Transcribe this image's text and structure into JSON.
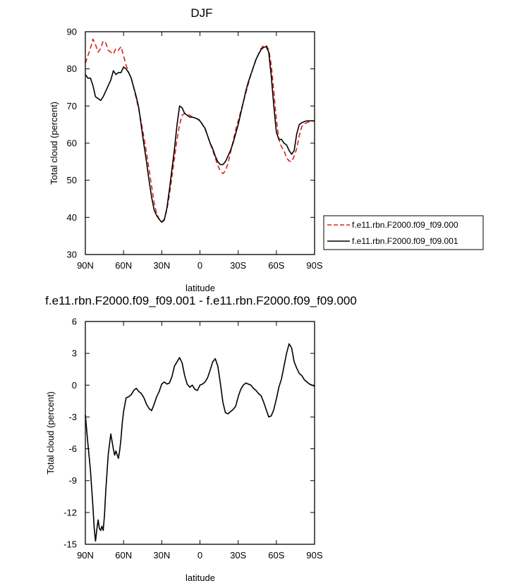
{
  "chart_data": [
    {
      "type": "line",
      "title": "DJF",
      "xlabel": "latitude",
      "ylabel": "Total cloud (percent)",
      "xlim": [
        90,
        -90
      ],
      "ylim": [
        30,
        90
      ],
      "x_ticks": [
        90,
        60,
        30,
        0,
        -30,
        -60,
        -90
      ],
      "x_tick_labels": [
        "90N",
        "60N",
        "30N",
        "0",
        "30S",
        "60S",
        "90S"
      ],
      "y_ticks": [
        30,
        40,
        50,
        60,
        70,
        80,
        90
      ],
      "y_tick_labels": [
        "30",
        "40",
        "50",
        "60",
        "70",
        "80",
        "90"
      ],
      "grid": false,
      "legend": "outside-right",
      "series": [
        {
          "name": "f.e11.rbn.F2000.f09_f09.000",
          "color": "#e0201b",
          "dash": "dashed",
          "x": [
            90,
            88,
            86,
            84,
            82,
            80,
            78,
            76,
            74,
            72,
            70,
            68,
            66,
            64,
            62,
            60,
            58,
            56,
            54,
            52,
            50,
            48,
            46,
            44,
            42,
            40,
            38,
            36,
            34,
            32,
            30,
            28,
            26,
            24,
            22,
            20,
            18,
            16,
            14,
            12,
            10,
            8,
            6,
            4,
            2,
            0,
            -2,
            -4,
            -6,
            -8,
            -10,
            -12,
            -14,
            -16,
            -18,
            -20,
            -22,
            -24,
            -26,
            -28,
            -30,
            -32,
            -34,
            -36,
            -38,
            -40,
            -42,
            -44,
            -46,
            -48,
            -50,
            -52,
            -54,
            -56,
            -58,
            -60,
            -62,
            -64,
            -66,
            -68,
            -70,
            -72,
            -74,
            -76,
            -78,
            -80,
            -82,
            -84,
            -86,
            -88,
            -90
          ],
          "y": [
            81.5,
            83.5,
            85.5,
            88,
            86.5,
            84.5,
            85.5,
            87.5,
            87,
            85,
            84.5,
            84,
            85.5,
            85,
            86,
            83.5,
            81,
            79,
            77.5,
            75,
            72,
            69,
            65.5,
            61.5,
            57.5,
            53,
            48.5,
            44,
            41,
            39.5,
            38.8,
            39.5,
            42,
            46,
            51,
            56,
            61,
            65,
            67.5,
            68,
            67.8,
            67.5,
            67,
            66.8,
            66.5,
            66.2,
            65,
            63.8,
            62,
            60,
            58,
            56,
            54,
            52.5,
            51.8,
            52.5,
            54.5,
            57.5,
            60.5,
            63.5,
            66,
            68.5,
            71,
            73.5,
            76,
            78.5,
            80.5,
            82.5,
            84,
            85.5,
            86.3,
            86.3,
            85.2,
            81,
            74,
            66.5,
            61,
            59,
            58,
            56,
            55.2,
            55,
            56.5,
            58.5,
            62,
            64.5,
            65.2,
            65.5,
            65.8,
            66,
            66
          ]
        },
        {
          "name": "f.e11.rbn.F2000.f09_f09.001",
          "color": "#000000",
          "dash": "solid",
          "x": [
            90,
            88,
            86,
            84,
            82,
            80,
            78,
            76,
            74,
            72,
            70,
            68,
            66,
            64,
            62,
            60,
            58,
            56,
            54,
            52,
            50,
            48,
            46,
            44,
            42,
            40,
            38,
            36,
            34,
            32,
            30,
            28,
            26,
            24,
            22,
            20,
            18,
            16,
            14,
            12,
            10,
            8,
            6,
            4,
            2,
            0,
            -2,
            -4,
            -6,
            -8,
            -10,
            -12,
            -14,
            -16,
            -18,
            -20,
            -22,
            -24,
            -26,
            -28,
            -30,
            -32,
            -34,
            -36,
            -38,
            -40,
            -42,
            -44,
            -46,
            -48,
            -50,
            -52,
            -54,
            -56,
            -58,
            -60,
            -62,
            -64,
            -66,
            -68,
            -70,
            -72,
            -74,
            -76,
            -78,
            -80,
            -82,
            -84,
            -86,
            -88,
            -90
          ],
          "y": [
            78.5,
            77.5,
            77.5,
            75.5,
            72.5,
            72,
            71.5,
            72.5,
            74,
            75.5,
            77,
            79.5,
            78.5,
            79,
            79,
            80.5,
            80,
            79,
            77.5,
            75,
            72.5,
            69.5,
            64.5,
            59.5,
            55,
            50,
            45.5,
            42,
            40.5,
            39.5,
            38.7,
            39.3,
            42.5,
            47.5,
            53,
            58.5,
            65,
            70,
            69.5,
            68,
            67.5,
            67,
            67,
            66.8,
            66.5,
            66,
            65,
            64,
            62,
            60,
            58.5,
            56.5,
            55,
            54.2,
            54.2,
            55,
            56.5,
            58,
            60,
            62.5,
            65,
            68,
            71,
            74,
            76.5,
            78.5,
            80.5,
            82.5,
            84,
            85.2,
            85.8,
            86,
            84.5,
            78,
            70,
            63,
            61,
            61,
            60,
            59.5,
            58,
            57,
            58,
            62.5,
            65,
            65.5,
            65.8,
            66,
            66,
            66,
            66
          ]
        }
      ]
    },
    {
      "type": "line",
      "title": "f.e11.rbn.F2000.f09_f09.001 - f.e11.rbn.F2000.f09_f09.000",
      "xlabel": "latitude",
      "ylabel": "Total cloud (percent)",
      "xlim": [
        90,
        -90
      ],
      "ylim": [
        -15,
        6
      ],
      "x_ticks": [
        90,
        60,
        30,
        0,
        -30,
        -60,
        -90
      ],
      "x_tick_labels": [
        "90N",
        "60N",
        "30N",
        "0",
        "30S",
        "60S",
        "90S"
      ],
      "y_ticks": [
        -15,
        -12,
        -9,
        -6,
        -3,
        0,
        3,
        6
      ],
      "y_tick_labels": [
        "-15",
        "-12",
        "-9",
        "-6",
        "-3",
        "0",
        "3",
        "6"
      ],
      "grid": false,
      "legend": "none",
      "series": [
        {
          "color": "#000000",
          "dash": "solid",
          "x": [
            90,
            88,
            86,
            84,
            83,
            82,
            81,
            80,
            79,
            78,
            77,
            76,
            75,
            74,
            72,
            70,
            68,
            67,
            66,
            64,
            63,
            62,
            61,
            60,
            58,
            56,
            54,
            52,
            50,
            48,
            46,
            44,
            42,
            40,
            38,
            36,
            34,
            32,
            30,
            28,
            26,
            24,
            22,
            20,
            18,
            16,
            14,
            12,
            10,
            8,
            6,
            4,
            2,
            0,
            -2,
            -4,
            -6,
            -8,
            -10,
            -12,
            -14,
            -16,
            -18,
            -20,
            -22,
            -24,
            -26,
            -28,
            -30,
            -32,
            -34,
            -36,
            -38,
            -40,
            -42,
            -44,
            -46,
            -48,
            -50,
            -52,
            -54,
            -56,
            -58,
            -60,
            -62,
            -64,
            -66,
            -68,
            -70,
            -72,
            -74,
            -76,
            -78,
            -80,
            -82,
            -84,
            -86,
            -88,
            -90
          ],
          "y": [
            -2.8,
            -5.5,
            -8,
            -11.5,
            -13.5,
            -14.7,
            -13.6,
            -12.7,
            -13.5,
            -13.7,
            -13.3,
            -13.7,
            -12.3,
            -10,
            -6.5,
            -4.6,
            -6,
            -6.6,
            -6.2,
            -6.9,
            -6.1,
            -5,
            -3.5,
            -2.5,
            -1.2,
            -1.1,
            -0.9,
            -0.5,
            -0.3,
            -0.6,
            -0.8,
            -1.2,
            -1.8,
            -2.2,
            -2.4,
            -1.8,
            -1.1,
            -0.6,
            0.1,
            0.3,
            0.1,
            0.2,
            0.8,
            1.8,
            2.2,
            2.6,
            2.1,
            0.9,
            0.1,
            -0.2,
            0,
            -0.4,
            -0.5,
            0,
            0.1,
            0.3,
            0.7,
            1.4,
            2.2,
            2.5,
            1.8,
            0.2,
            -1.6,
            -2.6,
            -2.7,
            -2.5,
            -2.3,
            -2,
            -1.1,
            -0.4,
            0,
            0.2,
            0.1,
            0,
            -0.3,
            -0.5,
            -0.8,
            -1,
            -1.6,
            -2.3,
            -3,
            -2.9,
            -2.3,
            -1.3,
            -0.2,
            0.6,
            1.8,
            3,
            3.9,
            3.5,
            2.2,
            1.6,
            1.1,
            0.9,
            0.5,
            0.3,
            0.1,
            0,
            -0.1
          ]
        }
      ]
    }
  ]
}
